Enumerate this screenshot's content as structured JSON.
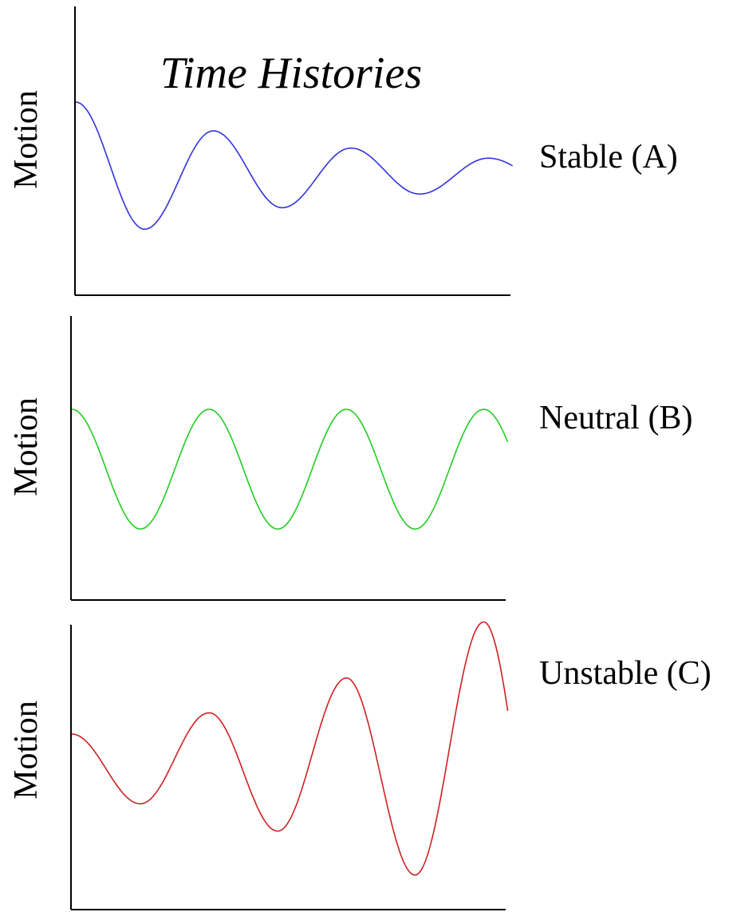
{
  "title": "Time Histories",
  "chart_data": [
    {
      "type": "line",
      "ylabel": "Motion",
      "label": "Stable (A)",
      "color": "#3333dd",
      "grid": false,
      "x": [
        0,
        0.5,
        1,
        1.5,
        2,
        2.5,
        3
      ],
      "series": [
        {
          "values": [
            1.0,
            -0.77,
            0.6,
            -0.47,
            0.36,
            -0.28,
            0.22
          ]
        }
      ]
    },
    {
      "type": "line",
      "ylabel": "Motion",
      "label": "Neutral (B)",
      "color": "#22cc22",
      "grid": false,
      "x": [
        0,
        0.5,
        1,
        1.5,
        2,
        2.5,
        3
      ],
      "series": [
        {
          "values": [
            1.0,
            -1.0,
            1.0,
            -1.0,
            1.0,
            -1.0,
            1.0
          ]
        }
      ]
    },
    {
      "type": "line",
      "ylabel": "Motion",
      "label": "Unstable (C)",
      "color": "#cc2222",
      "grid": false,
      "x": [
        0,
        0.5,
        1,
        1.5,
        2,
        2.5,
        3
      ],
      "series": [
        {
          "values": [
            1.0,
            -1.3,
            1.7,
            -2.2,
            2.85,
            -3.65,
            4.7
          ]
        }
      ]
    }
  ]
}
